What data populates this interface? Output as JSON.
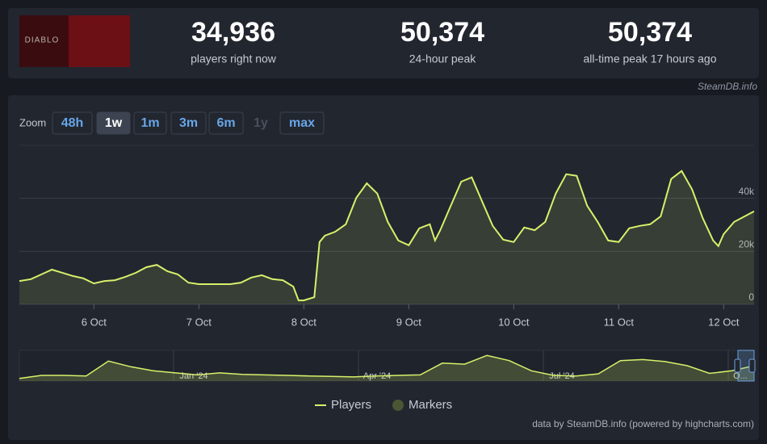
{
  "header": {
    "game_logo": "DIABLO",
    "stats": [
      {
        "value": "34,936",
        "label": "players right now"
      },
      {
        "value": "50,374",
        "label": "24-hour peak"
      },
      {
        "value": "50,374",
        "label": "all-time peak 17 hours ago"
      }
    ]
  },
  "credit": "SteamDB.info",
  "zoom": {
    "label": "Zoom",
    "buttons": [
      "48h",
      "1w",
      "1m",
      "3m",
      "6m",
      "1y",
      "max"
    ],
    "active": "1w",
    "disabled": "1y"
  },
  "chart_data": {
    "type": "line",
    "x": [
      5.29,
      5.4,
      5.5,
      5.6,
      5.7,
      5.8,
      5.9,
      6.0,
      6.1,
      6.2,
      6.3,
      6.4,
      6.5,
      6.6,
      6.7,
      6.8,
      6.9,
      7.0,
      7.1,
      7.2,
      7.3,
      7.4,
      7.5,
      7.6,
      7.7,
      7.8,
      7.9,
      7.95,
      8.0,
      8.1,
      8.15,
      8.2,
      8.3,
      8.4,
      8.5,
      8.6,
      8.7,
      8.8,
      8.9,
      9.0,
      9.1,
      9.2,
      9.25,
      9.3,
      9.4,
      9.5,
      9.6,
      9.7,
      9.8,
      9.9,
      10.0,
      10.1,
      10.2,
      10.3,
      10.4,
      10.5,
      10.6,
      10.7,
      10.8,
      10.9,
      11.0,
      11.1,
      11.2,
      11.3,
      11.4,
      11.5,
      11.6,
      11.7,
      11.8,
      11.9,
      11.95,
      12.0,
      12.1,
      12.2,
      12.29
    ],
    "series": [
      {
        "name": "Players",
        "color": "#d8f06a",
        "values": [
          8800,
          9500,
          11300,
          13100,
          11900,
          10700,
          9800,
          7900,
          8800,
          9100,
          10400,
          11900,
          14000,
          14900,
          12500,
          11300,
          8200,
          7600,
          7600,
          7600,
          7600,
          8200,
          10100,
          11000,
          9500,
          9100,
          6700,
          1500,
          1500,
          2700,
          23500,
          25900,
          27400,
          30200,
          40200,
          45700,
          41800,
          31100,
          24100,
          22300,
          28700,
          30200,
          24100,
          28000,
          37200,
          46300,
          47900,
          38700,
          29600,
          24400,
          23500,
          29000,
          28000,
          31100,
          41800,
          49100,
          48500,
          37200,
          31100,
          24100,
          23500,
          28700,
          29600,
          30200,
          33200,
          47300,
          50300,
          43300,
          32600,
          24100,
          22000,
          26500,
          31100,
          33200,
          35100
        ]
      }
    ],
    "markers": {
      "name": "Markers",
      "color": "#4b5634"
    },
    "xlim": [
      5.29,
      12.29
    ],
    "xticks": [
      {
        "value": 6,
        "label": "6 Oct"
      },
      {
        "value": 7,
        "label": "7 Oct"
      },
      {
        "value": 8,
        "label": "8 Oct"
      },
      {
        "value": 9,
        "label": "9 Oct"
      },
      {
        "value": 10,
        "label": "10 Oct"
      },
      {
        "value": 11,
        "label": "11 Oct"
      },
      {
        "value": 12,
        "label": "12 Oct"
      }
    ],
    "ylim": [
      0,
      60000
    ],
    "yticks": [
      0,
      {
        "value": 20000,
        "label": "20k"
      },
      {
        "value": 40000,
        "label": "40k"
      }
    ],
    "grid": true
  },
  "navigator": {
    "labels": [
      "Jan '24",
      "Apr '24",
      "Jul '24",
      "O..."
    ],
    "ylim": [
      0,
      60000
    ],
    "values": [
      5000,
      11000,
      11000,
      10000,
      39000,
      28000,
      20000,
      16000,
      12000,
      16000,
      13000,
      12000,
      11000,
      10000,
      9000,
      8000,
      10000,
      11000,
      12000,
      35000,
      33000,
      50000,
      40000,
      20000,
      11000,
      10000,
      14000,
      40000,
      42000,
      38000,
      30000,
      15000,
      20000,
      30000
    ]
  },
  "footer": "data by SteamDB.info (powered by highcharts.com)"
}
